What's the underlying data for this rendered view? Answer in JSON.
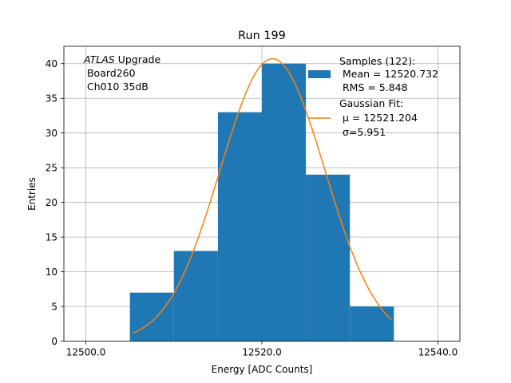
{
  "chart_data": {
    "type": "bar",
    "title": "Run 199",
    "xlabel": "Energy [ADC Counts]",
    "ylabel": "Entries",
    "xlim": [
      12497.5,
      12542.5
    ],
    "ylim": [
      0,
      42.5
    ],
    "grid": true,
    "x_ticks": [
      12500,
      12520,
      12540
    ],
    "x_tick_labels": [
      "12500.0",
      "12520.0",
      "12540.0"
    ],
    "y_ticks": [
      0,
      5,
      10,
      15,
      20,
      25,
      30,
      35,
      40
    ],
    "y_tick_labels": [
      "0",
      "5",
      "10",
      "15",
      "20",
      "25",
      "30",
      "35",
      "40"
    ],
    "bins": [
      {
        "x0": 12505.0,
        "x1": 12510.0,
        "count": 7
      },
      {
        "x0": 12510.0,
        "x1": 12515.0,
        "count": 13
      },
      {
        "x0": 12515.0,
        "x1": 12520.0,
        "count": 33
      },
      {
        "x0": 12520.0,
        "x1": 12525.0,
        "count": 40
      },
      {
        "x0": 12525.0,
        "x1": 12530.0,
        "count": 24
      },
      {
        "x0": 12530.0,
        "x1": 12535.0,
        "count": 5
      }
    ],
    "fit": {
      "mu": 12521.204,
      "sigma": 5.951,
      "amplitude": 40.7,
      "x_range": [
        12505.3,
        12534.7
      ]
    },
    "colors": {
      "histogram": "#1f77b4",
      "fit": "#ff7f0e",
      "grid": "#b0b0b0"
    },
    "annotation": {
      "experiment": "ATLAS",
      "suffix": " Upgrade",
      "line2": " Board260",
      "line3": " Ch010 35dB"
    },
    "legend": {
      "placement": "top-right",
      "samples_title": "Samples (122):",
      "samples_mean": " Mean = 12520.732",
      "samples_rms": " RMS = 5.848",
      "fit_title": "Gaussian Fit:",
      "fit_mu": " μ = 12521.204",
      "fit_sigma": " σ=5.951"
    }
  }
}
